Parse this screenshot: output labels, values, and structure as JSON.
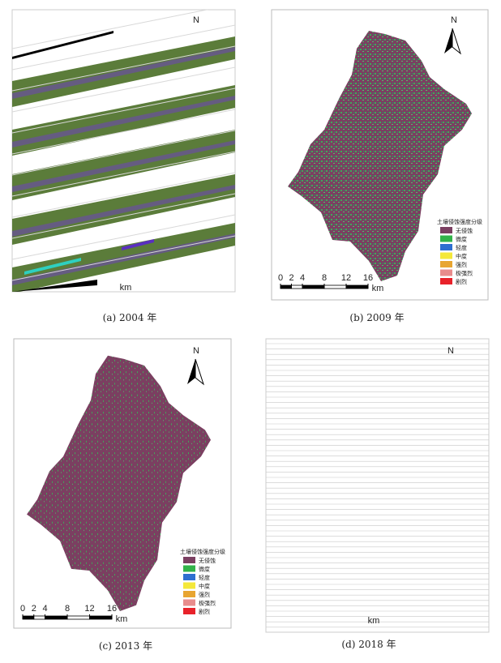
{
  "panels": [
    {
      "caption": "(a) 2004 年",
      "north": "N",
      "scale_unit": "km"
    },
    {
      "caption": "(b) 2009 年",
      "north": "N",
      "scale_ticks": [
        0,
        2,
        4,
        8,
        12,
        16
      ],
      "scale_unit": "km",
      "legend": {
        "title": "土壤侵蚀强度分级",
        "items": [
          {
            "label": "无侵蚀",
            "color": "#7b3f61"
          },
          {
            "label": "微度",
            "color": "#33b34a"
          },
          {
            "label": "轻度",
            "color": "#2e6fd0"
          },
          {
            "label": "中度",
            "color": "#f4e83a"
          },
          {
            "label": "强烈",
            "color": "#e8a531"
          },
          {
            "label": "极强烈",
            "color": "#e88c8c"
          },
          {
            "label": "剧烈",
            "color": "#e8222a"
          }
        ]
      }
    },
    {
      "caption": "(c) 2013 年",
      "north": "N",
      "scale_ticks": [
        0,
        2,
        4,
        8,
        12,
        16
      ],
      "scale_unit": "km",
      "legend": {
        "title": "土壤侵蚀强度分级",
        "items": [
          {
            "label": "无侵蚀",
            "color": "#7b3f61"
          },
          {
            "label": "微度",
            "color": "#33b34a"
          },
          {
            "label": "轻度",
            "color": "#2e6fd0"
          },
          {
            "label": "中度",
            "color": "#f4e83a"
          },
          {
            "label": "强烈",
            "color": "#e8a531"
          },
          {
            "label": "极强烈",
            "color": "#e88c8c"
          },
          {
            "label": "剧烈",
            "color": "#e8222a"
          }
        ]
      }
    },
    {
      "caption": "(d) 2018 年",
      "north": "N",
      "scale_unit": "km"
    }
  ]
}
